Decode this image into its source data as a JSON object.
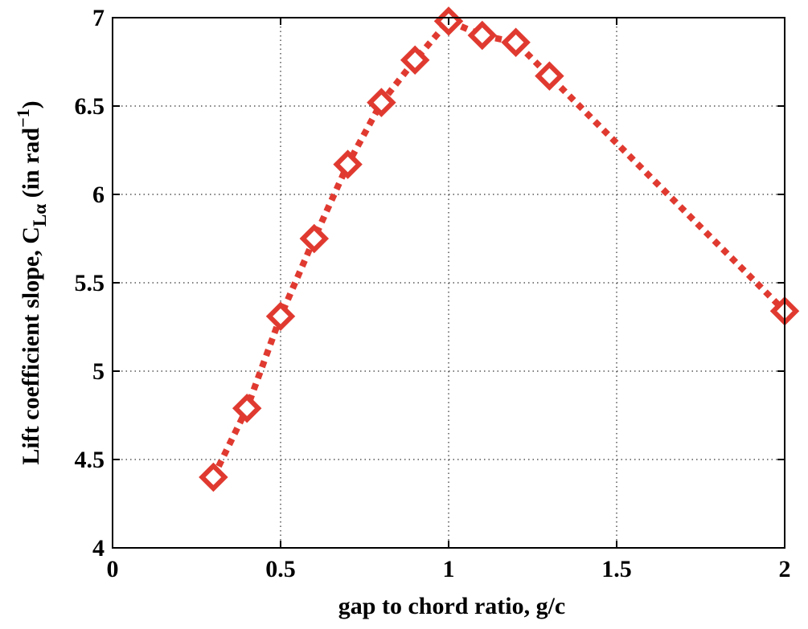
{
  "chart_data": {
    "type": "line",
    "title": "",
    "xlabel": "gap to chord ratio, g/c",
    "ylabel": {
      "main": "Lift coefficient slope, C",
      "subscript": "Lα",
      "paren_open": " (in rad",
      "superscript": "−1",
      "paren_close": ")"
    },
    "xlim": [
      0,
      2
    ],
    "ylim": [
      4,
      7
    ],
    "x_ticks": [
      "0",
      "0.5",
      "1",
      "1.5",
      "2"
    ],
    "x_tick_values": [
      0,
      0.5,
      1,
      1.5,
      2
    ],
    "y_ticks": [
      "4",
      "4.5",
      "5",
      "5.5",
      "6",
      "6.5",
      "7"
    ],
    "y_tick_values": [
      4,
      4.5,
      5,
      5.5,
      6,
      6.5,
      7
    ],
    "grid": true,
    "series": [
      {
        "color": "#e03a30",
        "line_style": "dotted",
        "marker": "diamond",
        "x": [
          0.3,
          0.4,
          0.5,
          0.6,
          0.7,
          0.8,
          0.9,
          1.0,
          1.1,
          1.2,
          1.3,
          2.0
        ],
        "y": [
          4.4,
          4.79,
          5.31,
          5.75,
          6.17,
          6.52,
          6.76,
          6.98,
          6.9,
          6.86,
          6.67,
          5.34
        ]
      }
    ]
  }
}
